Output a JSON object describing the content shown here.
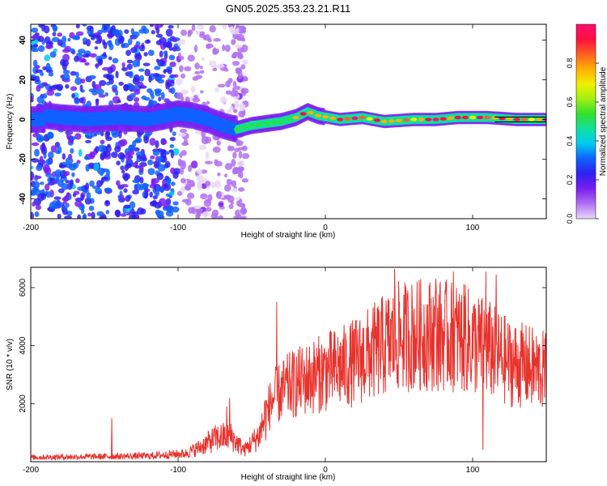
{
  "title": "GN05.2025.353.23.21.R11",
  "colors": {
    "background": "#ffffff",
    "axis": "#000000",
    "snr_line": "#e8322c",
    "center_band": "#000000"
  },
  "chart_data": [
    {
      "type": "heatmap",
      "name": "spectrogram",
      "xlabel": "Height of straight line (km)",
      "ylabel": "Frequency (Hz)",
      "xlim": [
        -200,
        150
      ],
      "ylim": [
        -50,
        48
      ],
      "xticks": [
        -200,
        -100,
        0,
        100
      ],
      "yticks": [
        -40,
        -20,
        0,
        20,
        40
      ],
      "colorbar": {
        "label": "Normalized spectral amplitude",
        "range": [
          0,
          1
        ],
        "ticks": [
          "0.0",
          "0.2",
          "0.4",
          "0.6",
          "0.8"
        ],
        "tick_values": [
          0.0,
          0.2,
          0.4,
          0.6,
          0.8
        ],
        "stops": [
          "#e8d8f8",
          "#b070f0",
          "#7a1ff0",
          "#3020f0",
          "#1060ff",
          "#00c8f0",
          "#10e0a0",
          "#30e030",
          "#a0f010",
          "#f0f000",
          "#ffb000",
          "#ff6020",
          "#ff1040",
          "#ff1070"
        ]
      },
      "band_center_hz": [
        {
          "x": -190,
          "f": 2
        },
        {
          "x": -180,
          "f": 1
        },
        {
          "x": -160,
          "f": 0
        },
        {
          "x": -140,
          "f": 1
        },
        {
          "x": -120,
          "f": 0
        },
        {
          "x": -100,
          "f": 3
        },
        {
          "x": -90,
          "f": 2
        },
        {
          "x": -80,
          "f": 0
        },
        {
          "x": -70,
          "f": -3
        },
        {
          "x": -60,
          "f": -5
        },
        {
          "x": -50,
          "f": -3
        },
        {
          "x": -40,
          "f": -2
        },
        {
          "x": -30,
          "f": -1
        },
        {
          "x": -20,
          "f": 1
        },
        {
          "x": -12,
          "f": 4
        },
        {
          "x": -5,
          "f": 2
        },
        {
          "x": 10,
          "f": 0
        },
        {
          "x": 25,
          "f": 1
        },
        {
          "x": 40,
          "f": -1
        },
        {
          "x": 60,
          "f": 0
        },
        {
          "x": 75,
          "f": 0
        },
        {
          "x": 90,
          "f": 1
        },
        {
          "x": 110,
          "f": 1
        },
        {
          "x": 130,
          "f": 0
        },
        {
          "x": 150,
          "f": 0
        }
      ]
    },
    {
      "type": "line",
      "name": "snr",
      "xlabel": "Height of straight line (km)",
      "ylabel": "SNR (10 * v/v)",
      "xlim": [
        -200,
        150
      ],
      "ylim": [
        0,
        6700
      ],
      "xticks": [
        -200,
        -100,
        0,
        100
      ],
      "yticks": [
        2000,
        4000,
        6000
      ],
      "envelope": [
        {
          "x": -200,
          "y": 150
        },
        {
          "x": -150,
          "y": 180
        },
        {
          "x": -120,
          "y": 200
        },
        {
          "x": -95,
          "y": 280
        },
        {
          "x": -85,
          "y": 500
        },
        {
          "x": -75,
          "y": 800
        },
        {
          "x": -65,
          "y": 900
        },
        {
          "x": -55,
          "y": 400
        },
        {
          "x": -45,
          "y": 900
        },
        {
          "x": -40,
          "y": 1700
        },
        {
          "x": -35,
          "y": 2200
        },
        {
          "x": -25,
          "y": 2600
        },
        {
          "x": -10,
          "y": 2900
        },
        {
          "x": 0,
          "y": 3100
        },
        {
          "x": 15,
          "y": 3300
        },
        {
          "x": 30,
          "y": 3700
        },
        {
          "x": 50,
          "y": 4300
        },
        {
          "x": 70,
          "y": 4400
        },
        {
          "x": 90,
          "y": 4300
        },
        {
          "x": 110,
          "y": 3900
        },
        {
          "x": 125,
          "y": 3400
        },
        {
          "x": 135,
          "y": 3300
        },
        {
          "x": 150,
          "y": 3100
        }
      ],
      "spikes": [
        {
          "x": -145,
          "y": 1500
        },
        {
          "x": -65,
          "y": 2200
        },
        {
          "x": -67,
          "y": 1900
        },
        {
          "x": -33,
          "y": 5500
        },
        {
          "x": 47,
          "y": 6650
        },
        {
          "x": 75,
          "y": 6300
        },
        {
          "x": 87,
          "y": 6550
        },
        {
          "x": 95,
          "y": 6100
        },
        {
          "x": 107,
          "y": 420
        },
        {
          "x": 109,
          "y": 6550
        },
        {
          "x": 116,
          "y": 6450
        }
      ]
    }
  ]
}
